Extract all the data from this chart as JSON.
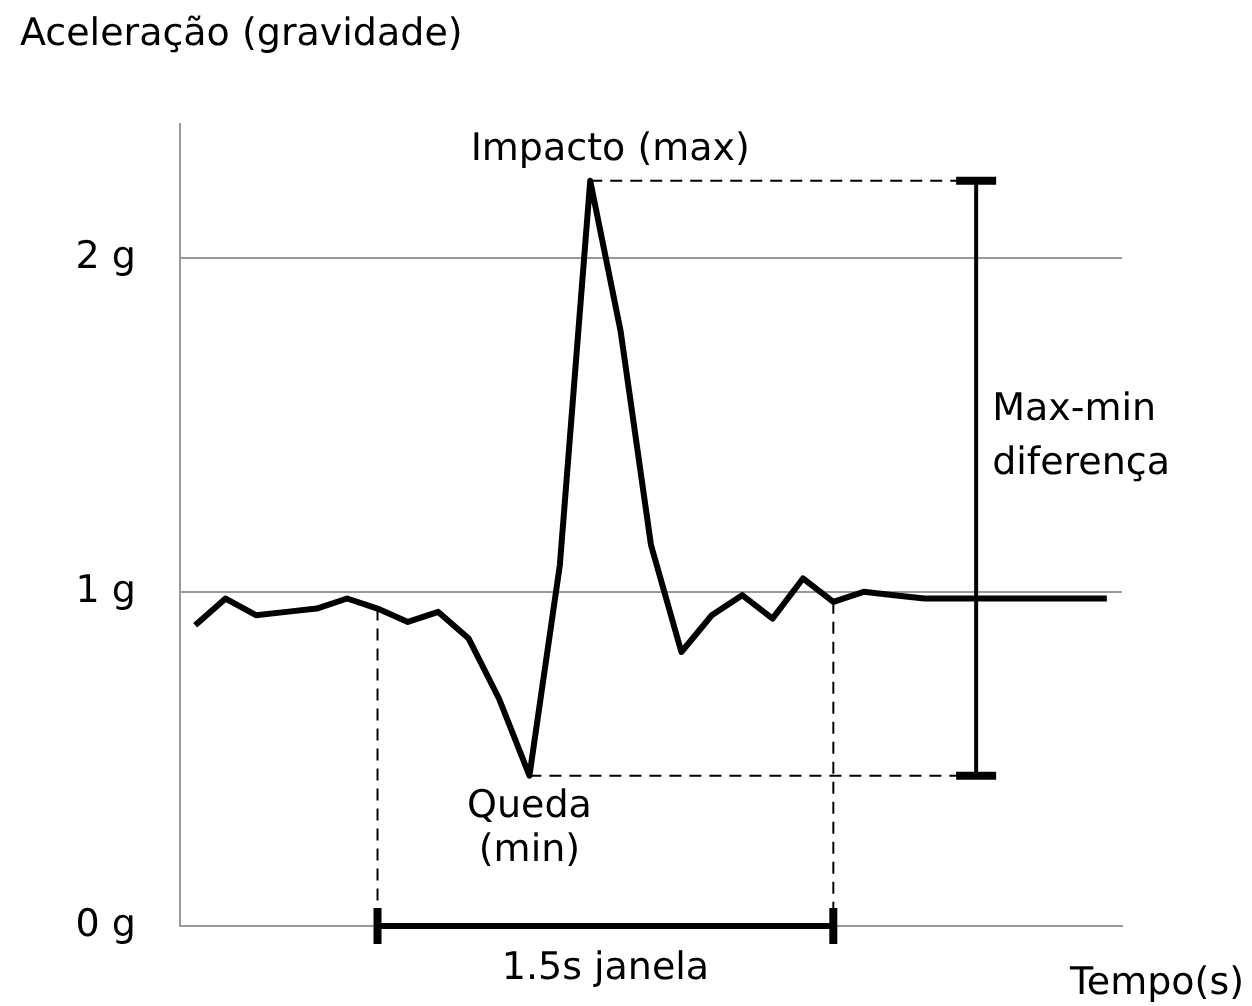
{
  "chart_data": {
    "type": "line",
    "ylabel": "Aceleração (gravidade)",
    "xlabel": "Tempo(s)",
    "categories": [
      null,
      null,
      null,
      null,
      null,
      null,
      null,
      null,
      null,
      null,
      null,
      null,
      null,
      null,
      null,
      null,
      null,
      null,
      null,
      null,
      null,
      null,
      null,
      null,
      null,
      null,
      null,
      null,
      null,
      null,
      null
    ],
    "series": [
      {
        "color": "#000000",
        "values": [
          0.9,
          0.98,
          0.93,
          0.94,
          0.95,
          0.98,
          0.95,
          0.91,
          0.94,
          0.86,
          0.68,
          0.45,
          1.08,
          2.23,
          1.78,
          1.14,
          0.82,
          0.93,
          0.99,
          0.92,
          1.04,
          0.97,
          1.0,
          0.99,
          0.98,
          0.98,
          0.98,
          0.98,
          0.98,
          0.98,
          0.98
        ]
      }
    ],
    "ylim": [
      0,
      2.4
    ],
    "yticks": [
      {
        "value": 0,
        "label": "0 g"
      },
      {
        "value": 1,
        "label": "1 g"
      },
      {
        "value": 2,
        "label": "2 g"
      }
    ],
    "tick_labels": "y",
    "grid": "y",
    "legend": false,
    "marker": "none",
    "line_style": "solid",
    "annotations": [
      "Impacto (max)",
      "Queda (min)",
      "Max-min diferença",
      "1.5s janela"
    ]
  }
}
